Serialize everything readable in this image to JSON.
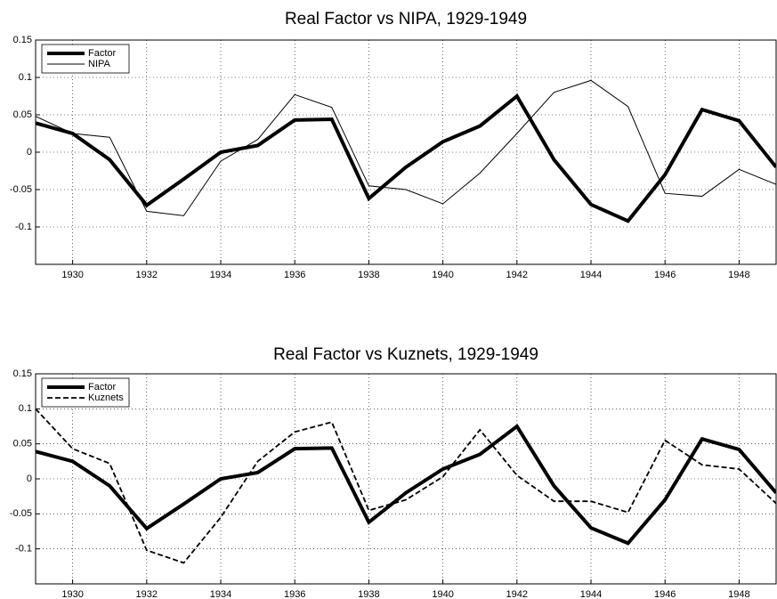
{
  "chart_data": [
    {
      "type": "line",
      "title": "Real Factor vs NIPA, 1929-1949",
      "x": [
        1929,
        1930,
        1931,
        1932,
        1933,
        1934,
        1935,
        1936,
        1937,
        1938,
        1939,
        1940,
        1941,
        1942,
        1943,
        1944,
        1945,
        1946,
        1947,
        1948,
        1949
      ],
      "series": [
        {
          "name": "Factor",
          "color": "#000000",
          "linewidth": 4,
          "dash": "solid",
          "values": [
            0.039,
            0.025,
            -0.01,
            -0.071,
            -0.036,
            0,
            0.009,
            0.043,
            0.044,
            -0.062,
            -0.02,
            0.014,
            0.035,
            0.075,
            -0.01,
            -0.07,
            -0.092,
            -0.03,
            0.057,
            0.042,
            -0.02
          ]
        },
        {
          "name": "NIPA",
          "color": "#000000",
          "linewidth": 1,
          "dash": "solid",
          "values": [
            0.048,
            0.025,
            0.02,
            -0.079,
            -0.085,
            -0.012,
            0.017,
            0.077,
            0.06,
            -0.045,
            -0.05,
            -0.069,
            -0.028,
            0.025,
            0.08,
            0.096,
            0.061,
            -0.055,
            -0.059,
            -0.023,
            -0.043
          ]
        }
      ],
      "xlim": [
        1929,
        1949
      ],
      "xticks": [
        1930,
        1932,
        1934,
        1936,
        1938,
        1940,
        1942,
        1944,
        1946,
        1948
      ],
      "ylim": [
        -0.15,
        0.15
      ],
      "yticks": [
        -0.1,
        -0.05,
        0,
        0.05,
        0.1,
        0.15
      ],
      "grid": true,
      "legend": "upper-left"
    },
    {
      "type": "line",
      "title": "Real Factor vs Kuznets, 1929-1949",
      "x": [
        1929,
        1930,
        1931,
        1932,
        1933,
        1934,
        1935,
        1936,
        1937,
        1938,
        1939,
        1940,
        1941,
        1942,
        1943,
        1944,
        1945,
        1946,
        1947,
        1948,
        1949
      ],
      "series": [
        {
          "name": "Factor",
          "color": "#000000",
          "linewidth": 4,
          "dash": "solid",
          "values": [
            0.039,
            0.025,
            -0.01,
            -0.071,
            -0.036,
            0,
            0.009,
            0.043,
            0.044,
            -0.062,
            -0.02,
            0.014,
            0.035,
            0.075,
            -0.01,
            -0.07,
            -0.092,
            -0.03,
            0.057,
            0.042,
            -0.02
          ]
        },
        {
          "name": "Kuznets",
          "color": "#000000",
          "linewidth": 1.8,
          "dash": "dashed",
          "values": [
            0.1,
            0.043,
            0.022,
            -0.102,
            -0.12,
            -0.055,
            0.025,
            0.067,
            0.081,
            -0.045,
            -0.03,
            0.003,
            0.07,
            0.005,
            -0.032,
            -0.032,
            -0.048,
            0.055,
            0.02,
            0.014,
            -0.035
          ]
        }
      ],
      "xlim": [
        1929,
        1949
      ],
      "xticks": [
        1930,
        1932,
        1934,
        1936,
        1938,
        1940,
        1942,
        1944,
        1946,
        1948
      ],
      "ylim": [
        -0.15,
        0.15
      ],
      "yticks": [
        -0.1,
        -0.05,
        0,
        0.05,
        0.1,
        0.15
      ],
      "grid": true,
      "legend": "upper-left"
    }
  ]
}
